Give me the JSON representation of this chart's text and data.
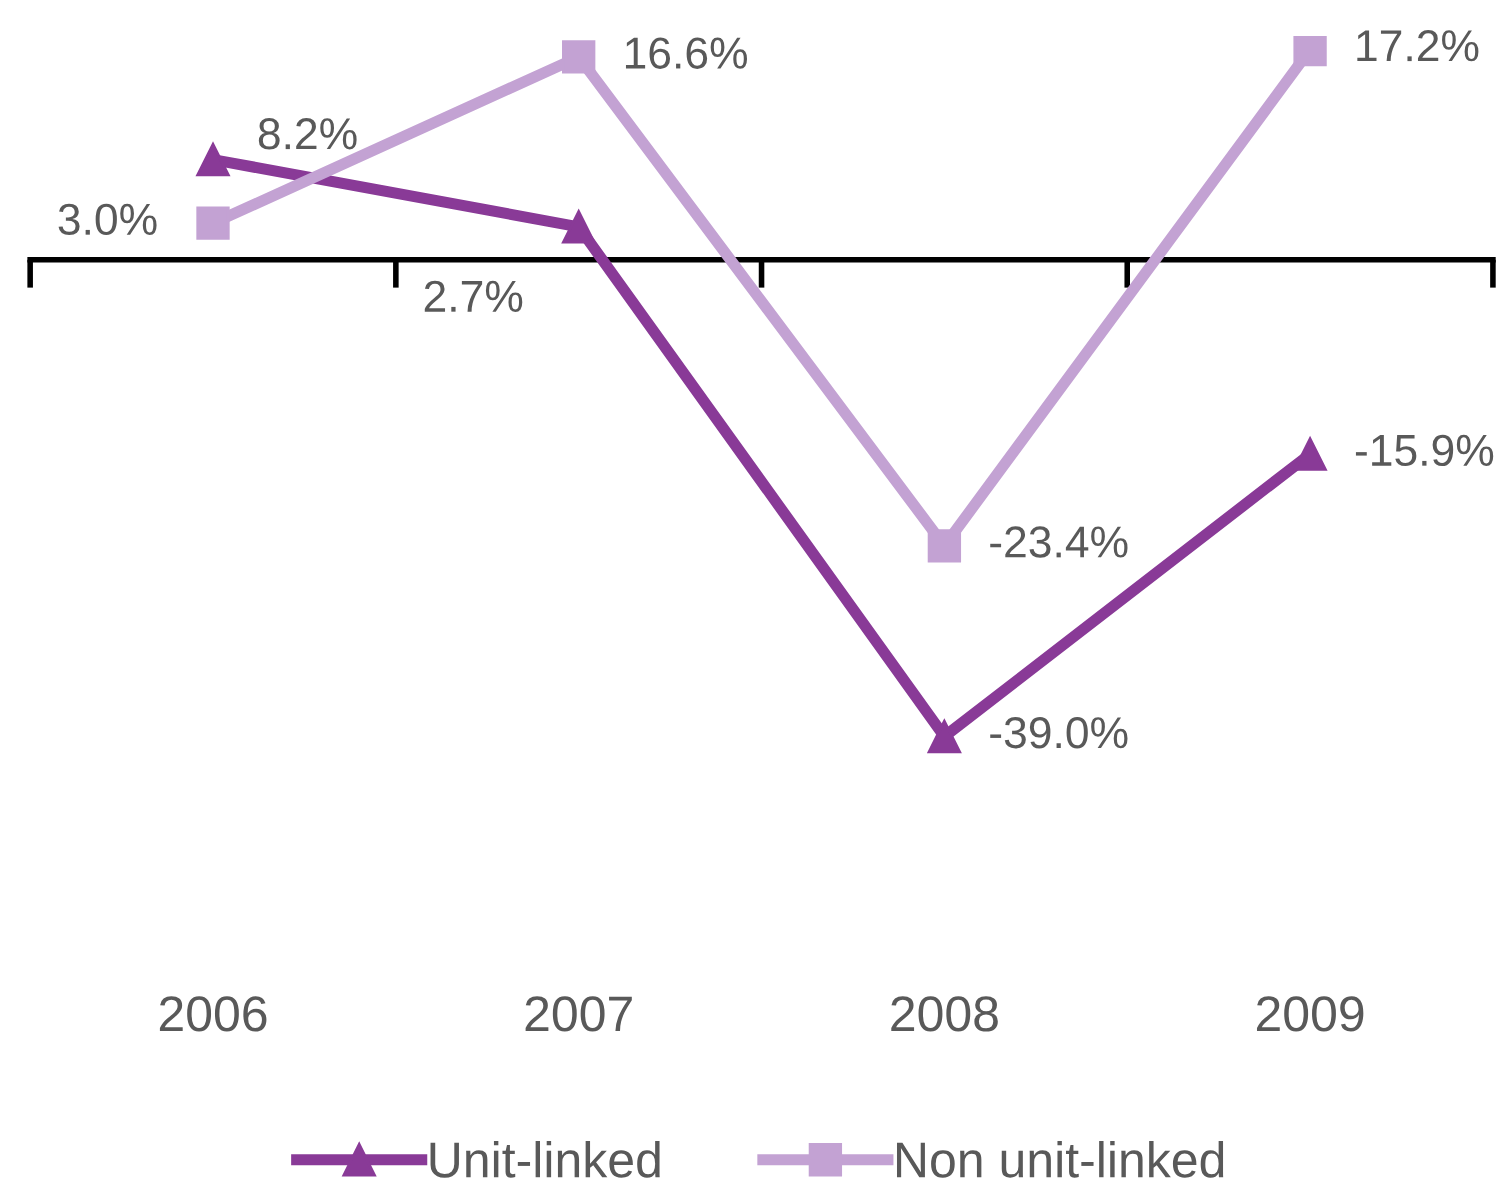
{
  "chart_data": {
    "type": "line",
    "categories": [
      "2006",
      "2007",
      "2008",
      "2009"
    ],
    "series": [
      {
        "name": "Unit-linked",
        "color": "#893a97",
        "marker": "triangle",
        "values": [
          8.2,
          2.7,
          -39.0,
          -15.9
        ],
        "value_labels": [
          "8.2%",
          "2.7%",
          "-39.0%",
          "-15.9%"
        ]
      },
      {
        "name": "Non unit-linked",
        "color": "#c3a2d3",
        "marker": "square",
        "values": [
          3.0,
          16.6,
          -23.4,
          17.2
        ],
        "value_labels": [
          "3.0%",
          "16.6%",
          "-23.4%",
          "17.2%"
        ]
      }
    ],
    "legend": "bottom",
    "grid": false,
    "line_style": "solid"
  }
}
